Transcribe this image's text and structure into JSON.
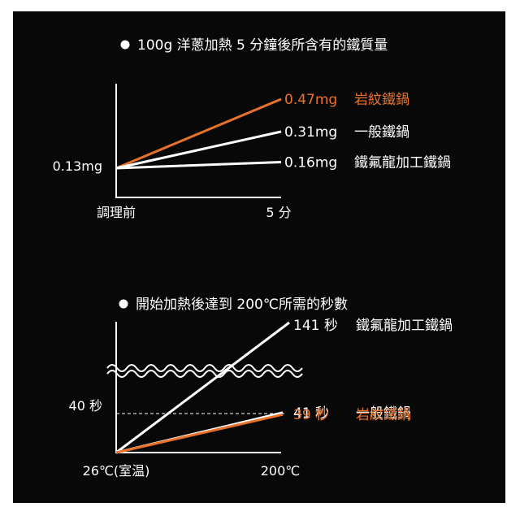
{
  "colors": {
    "background": "#080808",
    "accent": "#e8722a",
    "text": "#ffffff"
  },
  "chart_data": [
    {
      "type": "line",
      "title": "100g 洋蔥加熱 5 分鐘後所含有的鐵質量",
      "x": [
        "調理前",
        "5 分"
      ],
      "start_label": "0.13mg",
      "series": [
        {
          "value_label": "0.47mg",
          "name": "岩紋鐵鍋",
          "values": [
            0.13,
            0.47
          ],
          "color": "#e8722a",
          "highlight": true
        },
        {
          "value_label": "0.31mg",
          "name": "一般鐵鍋",
          "values": [
            0.13,
            0.31
          ],
          "color": "#ffffff"
        },
        {
          "value_label": "0.16mg",
          "name": "鐵氟龍加工鐵鍋",
          "values": [
            0.13,
            0.16
          ],
          "color": "#ffffff"
        }
      ],
      "ylim": [
        0.13,
        0.47
      ]
    },
    {
      "type": "line",
      "title": "開始加熱後達到 200℃所需的秒數",
      "x": [
        "26℃(室温)",
        "200℃"
      ],
      "reference_label": "40 秒",
      "reference_value": 40,
      "axis_break": true,
      "series": [
        {
          "value_label": "141 秒",
          "name": "鐵氟龍加工鐵鍋",
          "values": [
            0,
            141
          ],
          "color": "#ffffff"
        },
        {
          "value_label": "41 秒",
          "name": "一般鐵鍋",
          "values": [
            0,
            41
          ],
          "color": "#ffffff"
        },
        {
          "value_label": "39 秒",
          "name": "岩紋鐵鍋",
          "values": [
            0,
            39
          ],
          "color": "#e8722a",
          "highlight": true
        }
      ]
    }
  ]
}
